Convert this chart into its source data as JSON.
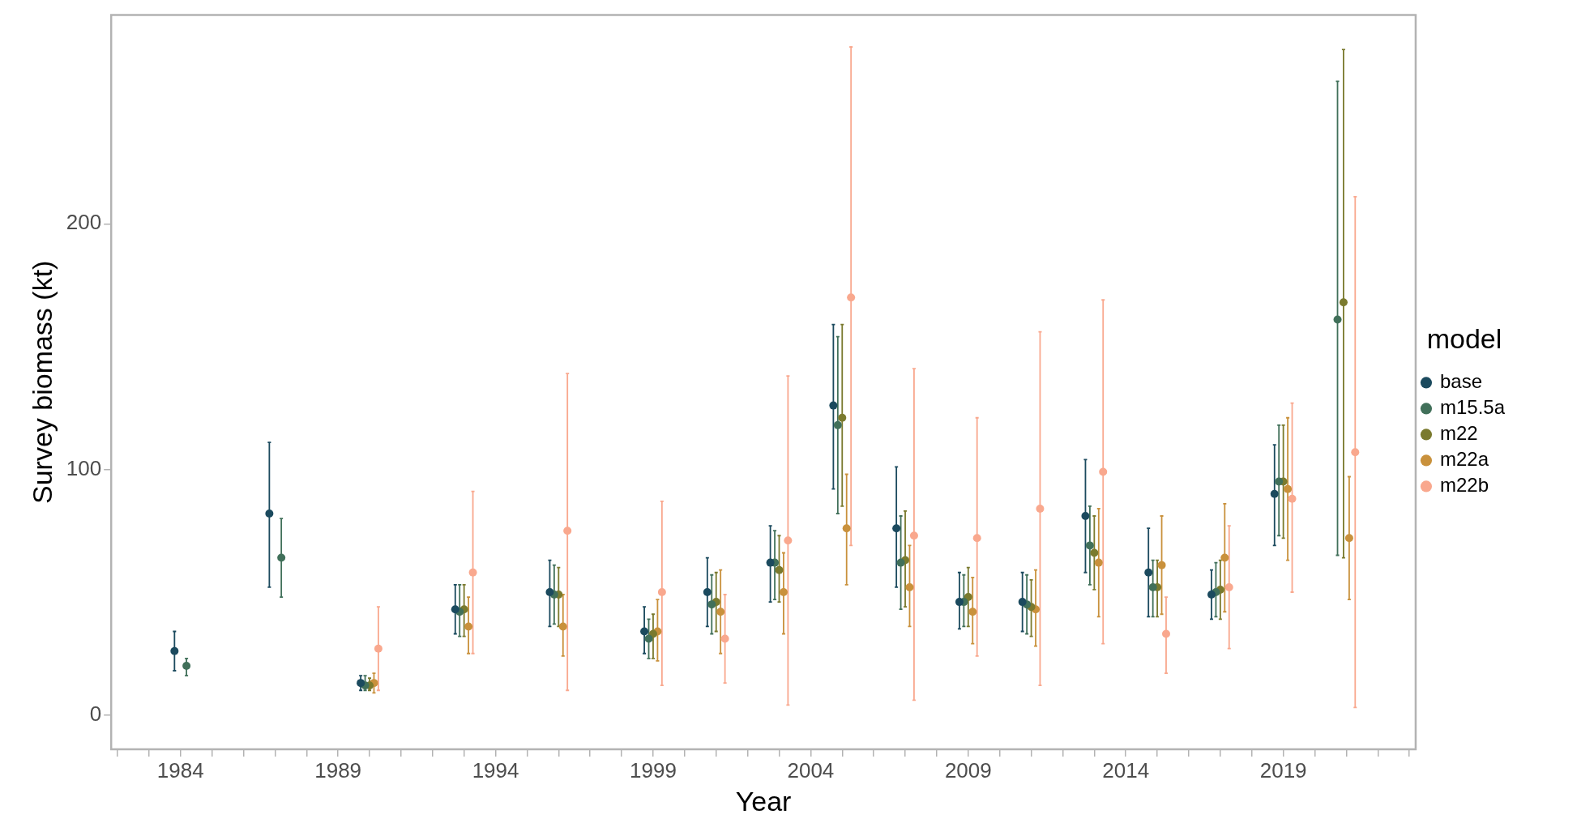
{
  "chart_data": {
    "type": "scatter",
    "xlabel": "Year",
    "ylabel": "Survey biomass (kt)",
    "legend_title": "model",
    "legend": "right",
    "marker": "circle",
    "grid": false,
    "xlim": [
      1981.8,
      2023.2
    ],
    "ylim": [
      -14,
      285
    ],
    "xticks": [
      {
        "value": 1982,
        "label": null
      },
      {
        "value": 1983,
        "label": null
      },
      1984,
      {
        "value": 1985,
        "label": null
      },
      {
        "value": 1986,
        "label": null
      },
      {
        "value": 1987,
        "label": null
      },
      {
        "value": 1988,
        "label": null
      },
      1989,
      {
        "value": 1990,
        "label": null
      },
      {
        "value": 1991,
        "label": null
      },
      {
        "value": 1992,
        "label": null
      },
      {
        "value": 1993,
        "label": null
      },
      1994,
      {
        "value": 1995,
        "label": null
      },
      {
        "value": 1996,
        "label": null
      },
      {
        "value": 1997,
        "label": null
      },
      {
        "value": 1998,
        "label": null
      },
      1999,
      {
        "value": 2000,
        "label": null
      },
      {
        "value": 2001,
        "label": null
      },
      {
        "value": 2002,
        "label": null
      },
      {
        "value": 2003,
        "label": null
      },
      2004,
      {
        "value": 2005,
        "label": null
      },
      {
        "value": 2006,
        "label": null
      },
      {
        "value": 2007,
        "label": null
      },
      {
        "value": 2008,
        "label": null
      },
      2009,
      {
        "value": 2010,
        "label": null
      },
      {
        "value": 2011,
        "label": null
      },
      {
        "value": 2012,
        "label": null
      },
      {
        "value": 2013,
        "label": null
      },
      2014,
      {
        "value": 2015,
        "label": null
      },
      {
        "value": 2016,
        "label": null
      },
      {
        "value": 2017,
        "label": null
      },
      {
        "value": 2018,
        "label": null
      },
      2019,
      {
        "value": 2020,
        "label": null
      },
      {
        "value": 2021,
        "label": null
      },
      {
        "value": 2022,
        "label": null
      },
      {
        "value": 2023,
        "label": null
      }
    ],
    "yticks": [
      0,
      100,
      200
    ],
    "series": [
      {
        "name": "base",
        "color": "#1b4a5e",
        "x": [
          1983.81,
          1986.82,
          1989.72,
          1992.72,
          1995.72,
          1998.72,
          2000.72,
          2002.72,
          2004.72,
          2006.72,
          2008.72,
          2010.72,
          2012.72,
          2014.72,
          2016.72,
          2018.72
        ],
        "values": [
          26,
          82,
          13,
          43,
          50,
          34,
          50,
          62,
          126,
          76,
          46,
          46,
          81,
          58,
          49,
          90
        ],
        "errors": [
          [
            18,
            34
          ],
          [
            52,
            111
          ],
          [
            10,
            16
          ],
          [
            33,
            53
          ],
          [
            36,
            63
          ],
          [
            25,
            44
          ],
          [
            36,
            64
          ],
          [
            46,
            77
          ],
          [
            92,
            159
          ],
          [
            52,
            101
          ],
          [
            35,
            58
          ],
          [
            34,
            58
          ],
          [
            58,
            104
          ],
          [
            40,
            76
          ],
          [
            39,
            59
          ],
          [
            69,
            110
          ]
        ]
      },
      {
        "name": "m15.5a",
        "color": "#41705a",
        "x": [
          1984.19,
          1987.2,
          1989.86,
          1992.86,
          1995.86,
          1998.86,
          2000.86,
          2002.86,
          2004.86,
          2006.86,
          2008.86,
          2010.86,
          2012.86,
          2014.86,
          2016.86,
          2018.86,
          2020.72
        ],
        "values": [
          20,
          64,
          12,
          42,
          49,
          31,
          45,
          62,
          118,
          62,
          46,
          45,
          69,
          52,
          50,
          95,
          161
        ],
        "errors": [
          [
            16,
            23
          ],
          [
            48,
            80
          ],
          [
            10,
            16
          ],
          [
            32,
            53
          ],
          [
            37,
            61
          ],
          [
            23,
            39
          ],
          [
            33,
            57
          ],
          [
            47,
            75
          ],
          [
            82,
            154
          ],
          [
            43,
            81
          ],
          [
            36,
            57
          ],
          [
            33,
            57
          ],
          [
            53,
            85
          ],
          [
            40,
            63
          ],
          [
            40,
            62
          ],
          [
            73,
            118
          ],
          [
            65,
            258
          ]
        ]
      },
      {
        "name": "m22",
        "color": "#7a7a2e",
        "x": [
          1990,
          1993,
          1996,
          1999,
          2001,
          2003,
          2005,
          2007,
          2009,
          2011,
          2013,
          2015,
          2017,
          2019,
          2020.91
        ],
        "values": [
          12,
          43,
          49,
          33,
          46,
          59,
          121,
          63,
          48,
          44,
          66,
          52,
          51,
          95,
          168
        ],
        "errors": [
          [
            10,
            15
          ],
          [
            32,
            53
          ],
          [
            36,
            60
          ],
          [
            23,
            41
          ],
          [
            34,
            58
          ],
          [
            46,
            73
          ],
          [
            85,
            159
          ],
          [
            44,
            83
          ],
          [
            36,
            60
          ],
          [
            32,
            55
          ],
          [
            51,
            81
          ],
          [
            40,
            63
          ],
          [
            39,
            63
          ],
          [
            72,
            118
          ],
          [
            64,
            271
          ]
        ]
      },
      {
        "name": "m22a",
        "color": "#c9913c",
        "x": [
          1990.14,
          1993.14,
          1996.14,
          1999.14,
          2001.14,
          2003.14,
          2005.14,
          2007.14,
          2009.14,
          2011.14,
          2013.14,
          2015.14,
          2017.14,
          2019.14,
          2021.09
        ],
        "values": [
          13,
          36,
          36,
          34,
          42,
          50,
          76,
          52,
          42,
          43,
          62,
          61,
          64,
          92,
          72
        ],
        "errors": [
          [
            9,
            17
          ],
          [
            25,
            48
          ],
          [
            24,
            49
          ],
          [
            22,
            47
          ],
          [
            25,
            59
          ],
          [
            33,
            66
          ],
          [
            53,
            98
          ],
          [
            36,
            69
          ],
          [
            29,
            56
          ],
          [
            28,
            59
          ],
          [
            40,
            84
          ],
          [
            41,
            81
          ],
          [
            42,
            86
          ],
          [
            63,
            121
          ],
          [
            47,
            97
          ]
        ]
      },
      {
        "name": "m22b",
        "color": "#f9a88e",
        "x": [
          1990.28,
          1993.28,
          1996.28,
          1999.28,
          2001.28,
          2003.28,
          2005.28,
          2007.28,
          2009.28,
          2011.28,
          2013.28,
          2015.28,
          2017.28,
          2019.28,
          2021.28
        ],
        "values": [
          27,
          58,
          75,
          50,
          31,
          71,
          170,
          73,
          72,
          84,
          99,
          33,
          52,
          88,
          107
        ],
        "errors": [
          [
            10,
            44
          ],
          [
            25,
            91
          ],
          [
            10,
            139
          ],
          [
            12,
            87
          ],
          [
            13,
            49
          ],
          [
            4,
            138
          ],
          [
            69,
            272
          ],
          [
            6,
            141
          ],
          [
            24,
            121
          ],
          [
            12,
            156
          ],
          [
            29,
            169
          ],
          [
            17,
            48
          ],
          [
            27,
            77
          ],
          [
            50,
            127
          ],
          [
            3,
            211
          ]
        ]
      }
    ]
  }
}
